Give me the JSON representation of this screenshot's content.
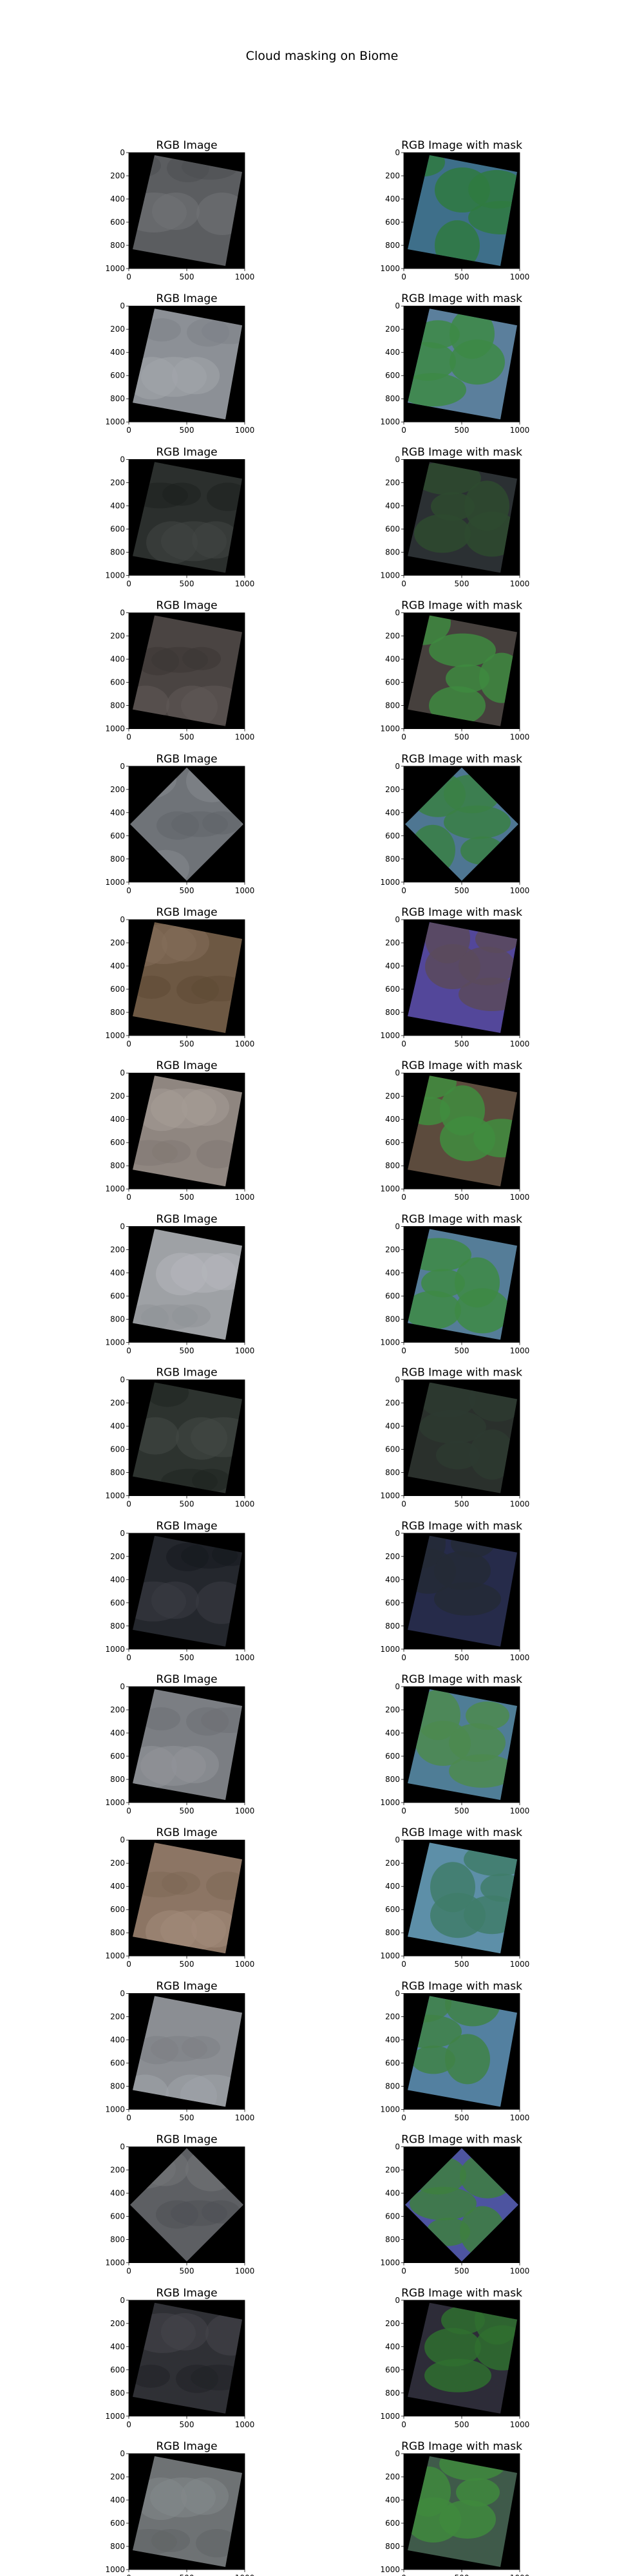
{
  "figure": {
    "suptitle": "Cloud masking on Biome",
    "columns": [
      "RGB Image",
      "RGB Image with mask"
    ],
    "x_ticks": [
      "0",
      "500",
      "1000"
    ],
    "y_ticks": [
      "0",
      "200",
      "400",
      "600",
      "800",
      "1000"
    ],
    "rows": [
      {
        "rgb_tone": "#5b5d60",
        "mask_land": "#2f7a3f",
        "mask_cloud": "#3e6f8a"
      },
      {
        "rgb_tone": "#8c9096",
        "mask_land": "#3d8a45",
        "mask_cloud": "#5b7f9c"
      },
      {
        "rgb_tone": "#2b2f2d",
        "mask_land": "#2e4a2f",
        "mask_cloud": "#2b3033"
      },
      {
        "rgb_tone": "#4a4442",
        "mask_land": "#3e8a3f",
        "mask_cloud": "#46403d"
      },
      {
        "rgb_tone": "#6f7378",
        "mask_land": "#3a8044",
        "mask_cloud": "#4e7692"
      },
      {
        "rgb_tone": "#6d5843",
        "mask_land": "#5a4a5c",
        "mask_cloud": "#53479a"
      },
      {
        "rgb_tone": "#8f8680",
        "mask_land": "#3f8d3e",
        "mask_cloud": "#5c4b3d"
      },
      {
        "rgb_tone": "#9ea1a5",
        "mask_land": "#3e8a44",
        "mask_cloud": "#557d98"
      },
      {
        "rgb_tone": "#2d332f",
        "mask_land": "#2d3a30",
        "mask_cloud": "#2a302c"
      },
      {
        "rgb_tone": "#24272d",
        "mask_land": "#252a36",
        "mask_cloud": "#262b4a"
      },
      {
        "rgb_tone": "#7b7e83",
        "mask_land": "#4c8a4f",
        "mask_cloud": "#4f7d96"
      },
      {
        "rgb_tone": "#8c7564",
        "mask_land": "#3f7c6a",
        "mask_cloud": "#5d8fa8"
      },
      {
        "rgb_tone": "#8b8e93",
        "mask_land": "#3f8246",
        "mask_cloud": "#5380a0"
      },
      {
        "rgb_tone": "#5d5f63",
        "mask_land": "#3e7f3f",
        "mask_cloud": "#4d54a0"
      },
      {
        "rgb_tone": "#2f3035",
        "mask_land": "#2f6e2f",
        "mask_cloud": "#2d2c38"
      },
      {
        "rgb_tone": "#6e7274",
        "mask_land": "#3f8a3d",
        "mask_cloud": "#3f5a4a"
      }
    ]
  }
}
